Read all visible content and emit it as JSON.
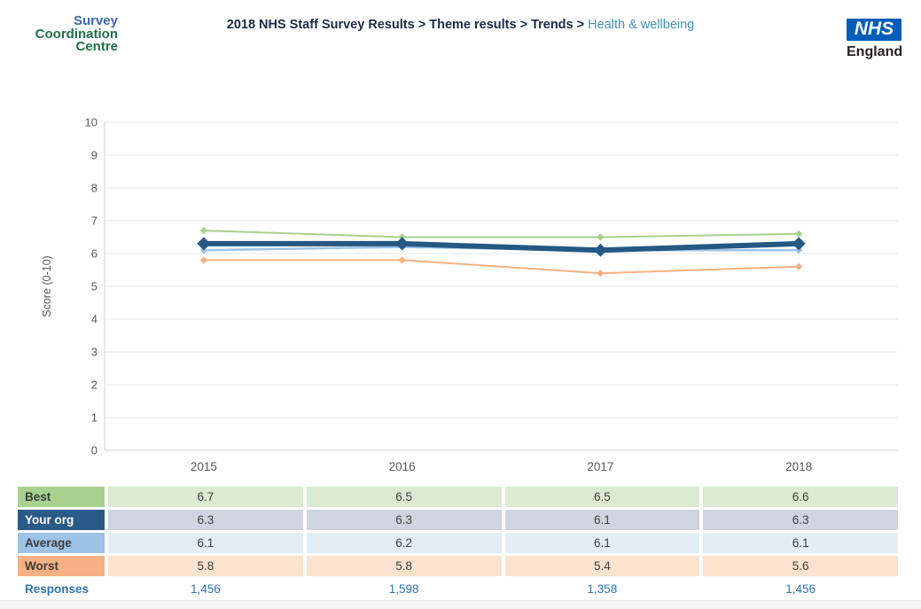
{
  "header": {
    "logo": {
      "line1": "Survey",
      "line2": "Coordination",
      "line3": "Centre"
    },
    "breadcrumb": {
      "path": "2018 NHS Staff Survey Results > Theme results > Trends > ",
      "current": "Health & wellbeing"
    },
    "nhs": {
      "acronym": "NHS",
      "region": "England"
    }
  },
  "chart_data": {
    "type": "line",
    "categories": [
      "2015",
      "2016",
      "2017",
      "2018"
    ],
    "series": [
      {
        "name": "Best",
        "values": [
          6.7,
          6.5,
          6.5,
          6.6
        ],
        "color": "#a9d18e",
        "width": 2
      },
      {
        "name": "Your org",
        "values": [
          6.3,
          6.3,
          6.1,
          6.3
        ],
        "color": "#255883",
        "width": 6
      },
      {
        "name": "Average",
        "values": [
          6.1,
          6.2,
          6.1,
          6.1
        ],
        "color": "#9dc3e6",
        "width": 2.5
      },
      {
        "name": "Worst",
        "values": [
          5.8,
          5.8,
          5.4,
          5.6
        ],
        "color": "#f5b183",
        "width": 2
      }
    ],
    "ylabel": "Score (0-10)",
    "ylim": [
      0,
      10
    ],
    "yticks": [
      0,
      1,
      2,
      3,
      4,
      5,
      6,
      7,
      8,
      9,
      10
    ],
    "grid": true,
    "legend": "table-below-chart"
  },
  "table": {
    "rows": [
      {
        "label": "Best",
        "values": [
          "6.7",
          "6.5",
          "6.5",
          "6.6"
        ],
        "label_bg": "#a9d18e",
        "cell_bg": "#dbead2",
        "label_color": "#3b3b3b"
      },
      {
        "label": "Your org",
        "values": [
          "6.3",
          "6.3",
          "6.1",
          "6.3"
        ],
        "label_bg": "#2a5a87",
        "cell_bg": "#cdd6e0",
        "label_color": "#ffffff"
      },
      {
        "label": "Average",
        "values": [
          "6.1",
          "6.2",
          "6.1",
          "6.1"
        ],
        "label_bg": "#9dc3e6",
        "cell_bg": "#e3edf6",
        "label_color": "#3b3b3b"
      },
      {
        "label": "Worst",
        "values": [
          "5.8",
          "5.8",
          "5.4",
          "5.6"
        ],
        "label_bg": "#f5b183",
        "cell_bg": "#fbe3cd",
        "label_color": "#3b3b3b"
      }
    ],
    "responses": {
      "label": "Responses",
      "values": [
        "1,456",
        "1,598",
        "1,358",
        "1,456"
      ]
    }
  },
  "colors": {
    "logo_blue": "#3a6ab0",
    "logo_green": "#1f7048",
    "breadcrumb_navy": "#1a2b4a",
    "breadcrumb_current": "#4293b8",
    "nhs_blue": "#005eb8",
    "nhs_england_text": "#231f20",
    "responses_blue": "#2e75b6",
    "axis_text": "#595959",
    "grid_line": "#e7e7e7",
    "axis_line": "#cfcfcf",
    "cell_text": "#3f3f3f"
  }
}
